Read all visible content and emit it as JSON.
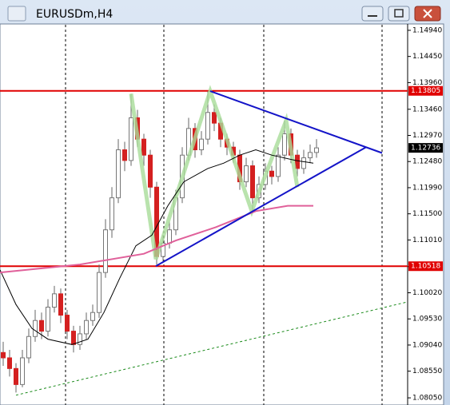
{
  "chart_data": {
    "type": "candlestick",
    "title": "EURUSDm,H4",
    "up_color": "#ffffff",
    "down_color": "#d42020",
    "open": [
      1.089,
      1.088,
      1.086,
      1.083,
      1.088,
      1.092,
      1.095,
      1.093,
      1.0975,
      1.1,
      1.096,
      1.093,
      1.0905,
      1.0925,
      1.095,
      1.0965,
      1.104,
      1.112,
      1.118,
      1.127,
      1.125,
      1.133,
      1.129,
      1.126,
      1.12,
      1.107,
      1.1095,
      1.112,
      1.118,
      1.126,
      1.131,
      1.127,
      1.129,
      1.134,
      1.132,
      1.129,
      1.1275,
      1.126,
      1.121,
      1.124,
      1.118,
      1.1205,
      1.123,
      1.122,
      1.126,
      1.13,
      1.126,
      1.1235,
      1.1255,
      1.1265
    ],
    "high": [
      1.091,
      1.0895,
      1.087,
      1.0895,
      1.0935,
      1.097,
      1.0965,
      1.099,
      1.1015,
      1.101,
      1.097,
      1.094,
      1.094,
      1.0965,
      1.098,
      1.1055,
      1.114,
      1.12,
      1.129,
      1.1285,
      1.1375,
      1.1345,
      1.13,
      1.127,
      1.121,
      1.111,
      1.1135,
      1.1195,
      1.1275,
      1.133,
      1.132,
      1.1305,
      1.138,
      1.1355,
      1.133,
      1.13,
      1.1285,
      1.127,
      1.1255,
      1.125,
      1.122,
      1.1245,
      1.124,
      1.1275,
      1.1325,
      1.131,
      1.127,
      1.127,
      1.128,
      1.129
    ],
    "low": [
      1.0865,
      1.0845,
      1.0815,
      1.0825,
      1.087,
      1.091,
      1.0915,
      1.092,
      1.0965,
      1.0945,
      1.0915,
      1.089,
      1.0895,
      1.0915,
      1.094,
      1.0955,
      1.103,
      1.1105,
      1.117,
      1.123,
      1.124,
      1.1275,
      1.124,
      1.118,
      1.1055,
      1.106,
      1.1085,
      1.111,
      1.117,
      1.125,
      1.1255,
      1.126,
      1.128,
      1.1305,
      1.1275,
      1.126,
      1.1245,
      1.1195,
      1.12,
      1.1155,
      1.117,
      1.1195,
      1.1205,
      1.121,
      1.125,
      1.1245,
      1.122,
      1.1225,
      1.1245,
      1.1255
    ],
    "close": [
      1.088,
      1.086,
      1.083,
      1.088,
      1.092,
      1.095,
      1.093,
      1.0975,
      1.1,
      1.096,
      1.093,
      1.0905,
      1.0925,
      1.095,
      1.0965,
      1.104,
      1.112,
      1.118,
      1.127,
      1.125,
      1.133,
      1.129,
      1.126,
      1.12,
      1.107,
      1.1095,
      1.112,
      1.118,
      1.126,
      1.131,
      1.127,
      1.129,
      1.134,
      1.132,
      1.129,
      1.1275,
      1.126,
      1.121,
      1.124,
      1.118,
      1.1205,
      1.123,
      1.122,
      1.126,
      1.13,
      1.126,
      1.1235,
      1.1255,
      1.1265,
      1.12736
    ],
    "xlim": [
      -0.5,
      63.25
    ],
    "ylim": [
      1.07916,
      1.15059
    ],
    "yticks": [
      {
        "value": 1.1494,
        "label": "1.14940"
      },
      {
        "value": 1.1445,
        "label": "1.14450"
      },
      {
        "value": 1.1396,
        "label": "1.13960"
      },
      {
        "value": 1.1346,
        "label": "1.13460"
      },
      {
        "value": 1.1297,
        "label": "1.12970"
      },
      {
        "value": 1.1248,
        "label": "1.12480"
      },
      {
        "value": 1.1199,
        "label": "1.11990"
      },
      {
        "value": 1.115,
        "label": "1.11500"
      },
      {
        "value": 1.1101,
        "label": "1.11010"
      },
      {
        "value": 1.1051,
        "label": "1.10510"
      },
      {
        "value": 1.1002,
        "label": "1.10020"
      },
      {
        "value": 1.0953,
        "label": "1.09530"
      },
      {
        "value": 1.0904,
        "label": "1.09040"
      },
      {
        "value": 1.0855,
        "label": "1.08550"
      },
      {
        "value": 1.0805,
        "label": "1.08050"
      }
    ],
    "levels": [
      {
        "price": 1.13805,
        "color": "#e00000"
      },
      {
        "price": 1.10518,
        "color": "#e00000"
      }
    ],
    "current_price": 1.12736,
    "lines": [
      {
        "style": "zigzag",
        "color": "#a8dc98",
        "x": [
          20,
          23.875,
          32.375,
          38.875,
          44.25,
          46
        ],
        "y": [
          1.1375,
          1.1065,
          1.138,
          1.1155,
          1.1325,
          1.12
        ]
      },
      {
        "style": "solid",
        "color": "#000000",
        "x": [
          -0.5,
          2,
          4.5,
          7,
          10.75,
          13.25,
          15.75,
          18.25,
          20.75,
          23.25,
          25.75,
          28.25,
          32,
          34.5,
          37,
          39.5,
          42,
          45.75,
          48.5
        ],
        "y": [
          1.1045,
          1.098,
          1.0935,
          1.0915,
          1.0905,
          1.0915,
          1.0965,
          1.103,
          1.109,
          1.111,
          1.1165,
          1.121,
          1.1235,
          1.1245,
          1.126,
          1.127,
          1.126,
          1.125,
          1.1245
        ]
      },
      {
        "style": "thick",
        "color": "#e0609a",
        "x": [
          -0.5,
          12,
          22,
          27,
          33.25,
          39.5,
          44.5,
          48.5
        ],
        "y": [
          1.104,
          1.1055,
          1.1075,
          1.11,
          1.1125,
          1.1155,
          1.1165,
          1.1165
        ]
      },
      {
        "style": "dashed",
        "color": "#1a8a1a",
        "x": [
          2,
          63.25
        ],
        "y": [
          1.081,
          1.0985
        ]
      },
      {
        "style": "trend",
        "color": "#1414c8",
        "x": [
          32.375,
          59.25
        ],
        "y": [
          1.138,
          1.1264
        ]
      },
      {
        "style": "trend",
        "color": "#1414c8",
        "x": [
          23.875,
          56.75
        ],
        "y": [
          1.1052,
          1.1275
        ]
      }
    ]
  }
}
